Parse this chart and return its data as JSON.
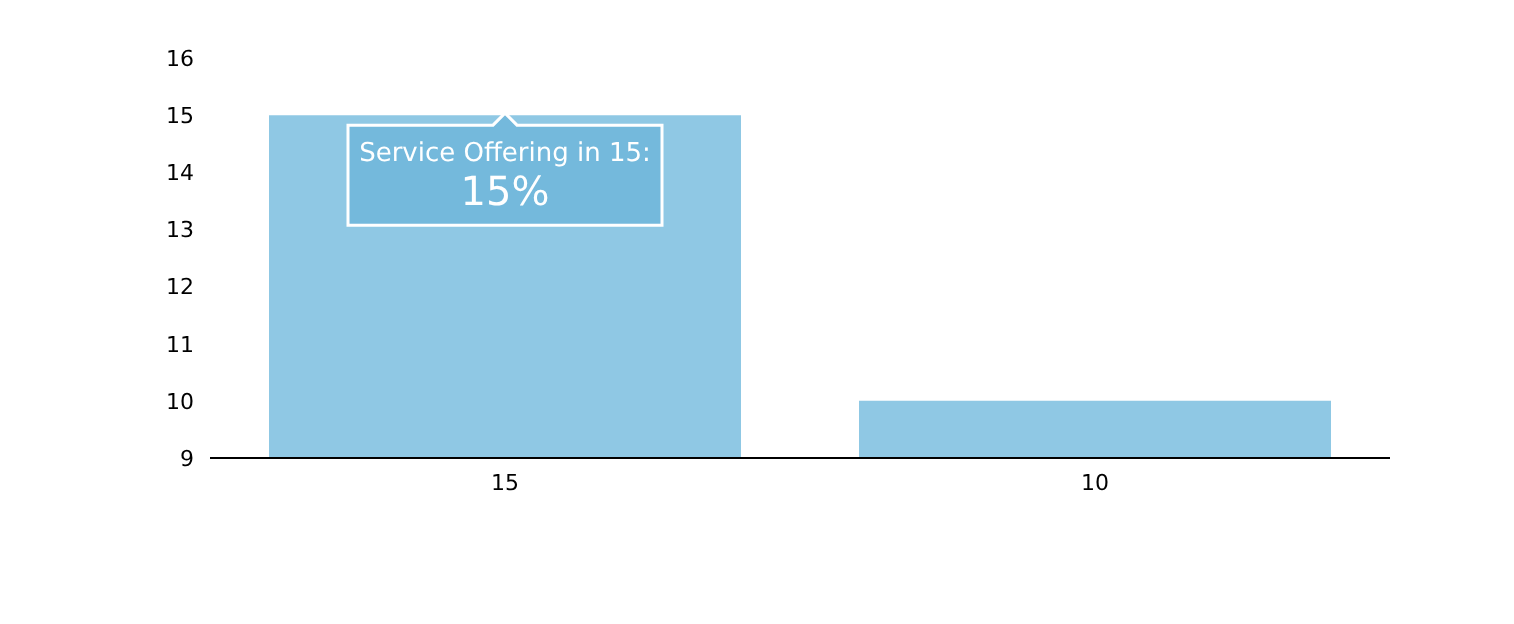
{
  "chart_data": {
    "type": "bar",
    "categories": [
      "15",
      "10"
    ],
    "values": [
      15,
      10
    ],
    "color": "#8fc8e4",
    "ylim": [
      9,
      16
    ],
    "yticks": [
      9,
      10,
      11,
      12,
      13,
      14,
      15,
      16
    ],
    "grid": false,
    "legend": false,
    "annotations": [
      {
        "text": "Service Offering in 15:\n15%",
        "x": "15",
        "y": 15
      }
    ]
  }
}
